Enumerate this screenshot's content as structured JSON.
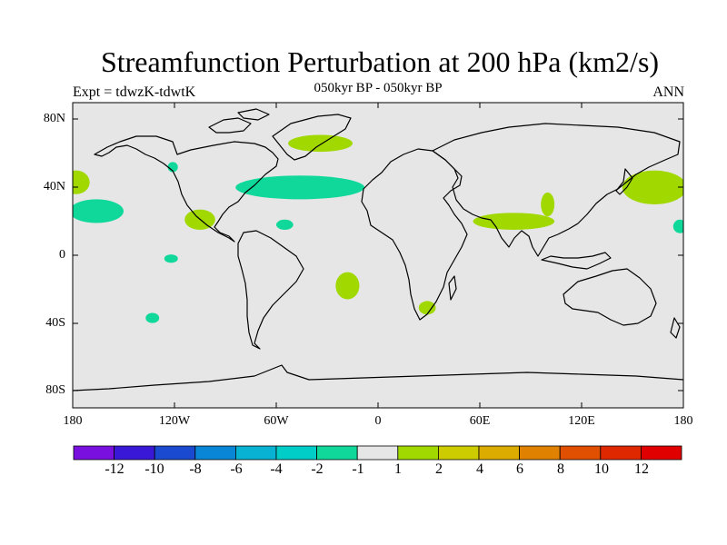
{
  "title": "Streamfunction Perturbation at 200 hPa (km2/s)",
  "subtitle": "050kyr BP - 050kyr BP",
  "left_label": "Expt = tdwzK-tdwtK",
  "right_label": "ANN",
  "lat_labels": [
    "80N",
    "40N",
    "0",
    "40S",
    "80S"
  ],
  "lon_labels": [
    "180",
    "120W",
    "60W",
    "0",
    "60E",
    "120E",
    "180"
  ],
  "colorbar": {
    "labels": [
      "-12",
      "-10",
      "-8",
      "-6",
      "-4",
      "-2",
      "-1",
      "1",
      "2",
      "4",
      "6",
      "8",
      "10",
      "12"
    ],
    "colors": [
      "#7a10e0",
      "#3a18d8",
      "#1a4ad0",
      "#0a86d6",
      "#08b2d2",
      "#00ccc8",
      "#10d89a",
      "#e6e6e6",
      "#a0d800",
      "#cccc00",
      "#dcac00",
      "#e08200",
      "#e05000",
      "#e02800",
      "#e00000"
    ]
  },
  "chart_data": {
    "type": "map",
    "projection": "cylindrical-equidistant",
    "title": "Streamfunction Perturbation at 200 hPa (km2/s)",
    "lon_range": [
      -180,
      180
    ],
    "lat_range": [
      -90,
      90
    ],
    "contour_levels": [
      -12,
      -10,
      -8,
      -6,
      -4,
      -2,
      -1,
      1,
      2,
      4,
      6,
      8,
      10,
      12
    ],
    "neutral_color": "#e6e6e6",
    "negative_color": "#10d89a",
    "positive_color": "#a0d800",
    "anomaly_regions": [
      {
        "name": "pacific-ne",
        "value": -2,
        "lon": -166,
        "lat": 26,
        "rlon": 16,
        "rlat": 7
      },
      {
        "name": "pacific-nw",
        "value": 2,
        "lon": -178,
        "lat": 43,
        "rlon": 8,
        "rlat": 7
      },
      {
        "name": "mexico",
        "value": 2,
        "lon": -105,
        "lat": 21,
        "rlon": 9,
        "rlat": 6
      },
      {
        "name": "canada",
        "value": -2,
        "lon": -121,
        "lat": 52,
        "rlon": 3,
        "rlat": 3
      },
      {
        "name": "east-pacific",
        "value": -2,
        "lon": -122,
        "lat": -2,
        "rlon": 4,
        "rlat": 2.5
      },
      {
        "name": "atlantic-trop",
        "value": -2,
        "lon": -55,
        "lat": 18,
        "rlon": 5,
        "rlat": 3
      },
      {
        "name": "north-atlantic",
        "value": -2,
        "lon": -46,
        "lat": 40,
        "rlon": 38,
        "rlat": 7
      },
      {
        "name": "greenland",
        "value": 2,
        "lon": -34,
        "lat": 66,
        "rlon": 19,
        "rlat": 5
      },
      {
        "name": "south-pacific",
        "value": -2,
        "lon": -133,
        "lat": -37,
        "rlon": 4,
        "rlat": 3
      },
      {
        "name": "south-atlantic",
        "value": 2,
        "lon": -18,
        "lat": -18,
        "rlon": 7,
        "rlat": 8
      },
      {
        "name": "south-africa",
        "value": 2,
        "lon": 29,
        "lat": -31,
        "rlon": 5,
        "rlat": 4
      },
      {
        "name": "india",
        "value": 2,
        "lon": 80,
        "lat": 20,
        "rlon": 24,
        "rlat": 5
      },
      {
        "name": "tibet",
        "value": 2,
        "lon": 100,
        "lat": 30,
        "rlon": 4,
        "rlat": 7
      },
      {
        "name": "north-pacific",
        "value": 2,
        "lon": 163,
        "lat": 40,
        "rlon": 19,
        "rlat": 10
      },
      {
        "name": "pacific-east-edge",
        "value": -2,
        "lon": 178,
        "lat": 17,
        "rlon": 4,
        "rlat": 4
      }
    ]
  }
}
